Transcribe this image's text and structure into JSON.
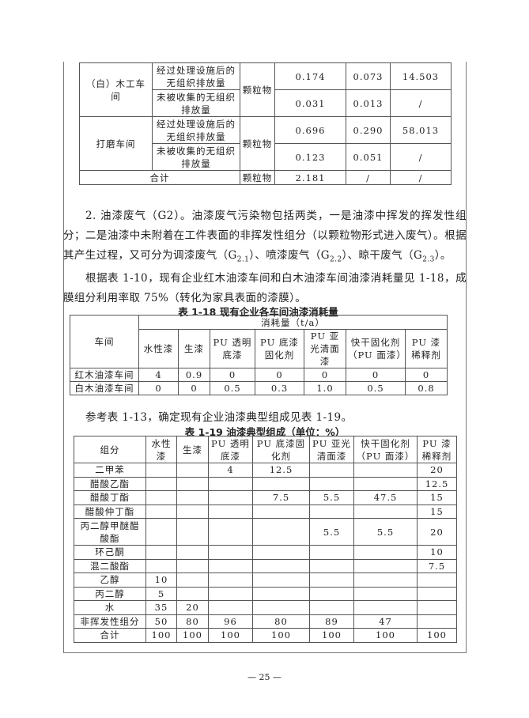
{
  "table_117_cont": {
    "rows": [
      [
        {
          "t": "（白）木工车间",
          "rs": 2
        },
        {
          "t": "经过处理设施后的无组织排放量"
        },
        {
          "t": "颗粒物",
          "rs": 2
        },
        {
          "t": "0.174"
        },
        {
          "t": "0.073"
        },
        {
          "t": "14.503"
        }
      ],
      [
        {
          "t": "未被收集的无组织排放量"
        },
        {
          "t": "0.031"
        },
        {
          "t": "0.013"
        },
        {
          "t": "/"
        }
      ],
      [
        {
          "t": "打磨车间",
          "rs": 2
        },
        {
          "t": "经过处理设施后的无组织排放量"
        },
        {
          "t": "颗粒物",
          "rs": 2
        },
        {
          "t": "0.696"
        },
        {
          "t": "0.290"
        },
        {
          "t": "58.013"
        }
      ],
      [
        {
          "t": "未被收集的无组织排放量"
        },
        {
          "t": "0.123"
        },
        {
          "t": "0.051"
        },
        {
          "t": "/"
        }
      ],
      [
        {
          "t": "合计",
          "cs": 2
        },
        {
          "t": "颗粒物"
        },
        {
          "t": "2.181"
        },
        {
          "t": "/"
        },
        {
          "t": "/"
        }
      ]
    ]
  },
  "paragraphs": {
    "p1_a": "2. 油漆废气（G2）。油漆废气污染物包括两类，一是油漆中挥发的挥发性组分；二是油漆中未附着在工件表面的非挥发性组分（以颗粒物形式进入废气）。根据其产生过程，又可分为调漆废气（G",
    "p1_s1": "2.1",
    "p1_b": "）、喷漆废气（G",
    "p1_s2": "2.2",
    "p1_c": "）、晾干废气（G",
    "p1_s3": "2.3",
    "p1_d": "）。",
    "p2": "根据表 1-10，现有企业红木油漆车间和白木油漆车间油漆消耗量见 1-18，成膜组分利用率取 75%（转化为家具表面的漆膜）。",
    "p3": "参考表 1-13，确定现有企业油漆典型组成见表 1-19。"
  },
  "table_118": {
    "caption": "表 1-18  现有企业各车间油漆消耗量",
    "rows": [
      [
        {
          "t": "车间",
          "rs": 2
        },
        {
          "t": "消耗量（t/a）",
          "cs": 7
        }
      ],
      [
        {
          "t": "水性漆"
        },
        {
          "t": "生漆"
        },
        {
          "t": "PU 透明底漆"
        },
        {
          "t": "PU 底漆固化剂"
        },
        {
          "t": "PU 亚光清面漆"
        },
        {
          "t": "快干固化剂（PU 面漆）"
        },
        {
          "t": "PU 漆稀释剂"
        }
      ],
      [
        {
          "t": "红木油漆车间"
        },
        {
          "t": "4"
        },
        {
          "t": "0.9"
        },
        {
          "t": "0"
        },
        {
          "t": "0"
        },
        {
          "t": "0"
        },
        {
          "t": "0"
        },
        {
          "t": "0"
        }
      ],
      [
        {
          "t": "白木油漆车间"
        },
        {
          "t": "0"
        },
        {
          "t": "0"
        },
        {
          "t": "0.5"
        },
        {
          "t": "0.3"
        },
        {
          "t": "1.0"
        },
        {
          "t": "0.5"
        },
        {
          "t": "0.8"
        }
      ]
    ]
  },
  "table_119": {
    "caption": "表 1-19  油漆典型组成（单位：%）",
    "rows": [
      [
        {
          "t": "组分"
        },
        {
          "t": "水性漆"
        },
        {
          "t": "生漆"
        },
        {
          "t": "PU 透明底漆"
        },
        {
          "t": "PU 底漆固化剂"
        },
        {
          "t": "PU 亚光清面漆"
        },
        {
          "t": "快干固化剂（PU 面漆）"
        },
        {
          "t": "PU 漆稀释剂"
        }
      ],
      [
        {
          "t": "二甲苯"
        },
        {
          "t": ""
        },
        {
          "t": ""
        },
        {
          "t": "4"
        },
        {
          "t": "12.5"
        },
        {
          "t": ""
        },
        {
          "t": ""
        },
        {
          "t": "20"
        }
      ],
      [
        {
          "t": "醋酸乙酯"
        },
        {
          "t": ""
        },
        {
          "t": ""
        },
        {
          "t": ""
        },
        {
          "t": ""
        },
        {
          "t": ""
        },
        {
          "t": ""
        },
        {
          "t": "12.5"
        }
      ],
      [
        {
          "t": "醋酸丁酯"
        },
        {
          "t": ""
        },
        {
          "t": ""
        },
        {
          "t": ""
        },
        {
          "t": "7.5"
        },
        {
          "t": "5.5"
        },
        {
          "t": "47.5"
        },
        {
          "t": "15"
        }
      ],
      [
        {
          "t": "醋酸仲丁酯"
        },
        {
          "t": ""
        },
        {
          "t": ""
        },
        {
          "t": ""
        },
        {
          "t": ""
        },
        {
          "t": ""
        },
        {
          "t": ""
        },
        {
          "t": "15"
        }
      ],
      [
        {
          "t": "丙二醇甲醚醋酸酯"
        },
        {
          "t": ""
        },
        {
          "t": ""
        },
        {
          "t": ""
        },
        {
          "t": ""
        },
        {
          "t": "5.5"
        },
        {
          "t": "5.5"
        },
        {
          "t": "20"
        }
      ],
      [
        {
          "t": "环己酮"
        },
        {
          "t": ""
        },
        {
          "t": ""
        },
        {
          "t": ""
        },
        {
          "t": ""
        },
        {
          "t": ""
        },
        {
          "t": ""
        },
        {
          "t": "10"
        }
      ],
      [
        {
          "t": "混二酸酯"
        },
        {
          "t": ""
        },
        {
          "t": ""
        },
        {
          "t": ""
        },
        {
          "t": ""
        },
        {
          "t": ""
        },
        {
          "t": ""
        },
        {
          "t": "7.5"
        }
      ],
      [
        {
          "t": "乙醇"
        },
        {
          "t": "10"
        },
        {
          "t": ""
        },
        {
          "t": ""
        },
        {
          "t": ""
        },
        {
          "t": ""
        },
        {
          "t": ""
        },
        {
          "t": ""
        }
      ],
      [
        {
          "t": "丙二醇"
        },
        {
          "t": "5"
        },
        {
          "t": ""
        },
        {
          "t": ""
        },
        {
          "t": ""
        },
        {
          "t": ""
        },
        {
          "t": ""
        },
        {
          "t": ""
        }
      ],
      [
        {
          "t": "水"
        },
        {
          "t": "35"
        },
        {
          "t": "20"
        },
        {
          "t": ""
        },
        {
          "t": ""
        },
        {
          "t": ""
        },
        {
          "t": ""
        },
        {
          "t": ""
        }
      ],
      [
        {
          "t": "非挥发性组分"
        },
        {
          "t": "50"
        },
        {
          "t": "80"
        },
        {
          "t": "96"
        },
        {
          "t": "80"
        },
        {
          "t": "89"
        },
        {
          "t": "47"
        },
        {
          "t": ""
        }
      ],
      [
        {
          "t": "合计"
        },
        {
          "t": "100"
        },
        {
          "t": "100"
        },
        {
          "t": "100"
        },
        {
          "t": "100"
        },
        {
          "t": "100"
        },
        {
          "t": "100"
        },
        {
          "t": "100"
        }
      ]
    ]
  },
  "page_number": "— 25 —"
}
